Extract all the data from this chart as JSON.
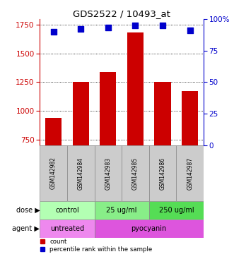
{
  "title": "GDS2522 / 10493_at",
  "samples": [
    "GSM142982",
    "GSM142984",
    "GSM142983",
    "GSM142985",
    "GSM142986",
    "GSM142987"
  ],
  "counts": [
    940,
    1250,
    1340,
    1680,
    1250,
    1170
  ],
  "percentiles": [
    90,
    92,
    93,
    95,
    95,
    91
  ],
  "bar_color": "#cc0000",
  "dot_color": "#0000cc",
  "ylim_left": [
    700,
    1800
  ],
  "ylim_right": [
    0,
    100
  ],
  "yticks_left": [
    750,
    1000,
    1250,
    1500,
    1750
  ],
  "yticks_right": [
    0,
    25,
    50,
    75,
    100
  ],
  "dose_groups": [
    {
      "label": "control",
      "span": [
        0,
        2
      ],
      "color": "#b3ffb3"
    },
    {
      "label": "25 ug/ml",
      "span": [
        2,
        4
      ],
      "color": "#88ee88"
    },
    {
      "label": "250 ug/ml",
      "span": [
        4,
        6
      ],
      "color": "#55dd55"
    }
  ],
  "agent_groups": [
    {
      "label": "untreated",
      "span": [
        0,
        2
      ],
      "color": "#ee88ee"
    },
    {
      "label": "pyocyanin",
      "span": [
        2,
        6
      ],
      "color": "#dd55dd"
    }
  ],
  "tick_label_color_left": "#cc0000",
  "tick_label_color_right": "#0000cc",
  "sample_box_color": "#cccccc",
  "background_color": "#ffffff",
  "bar_width": 0.6
}
